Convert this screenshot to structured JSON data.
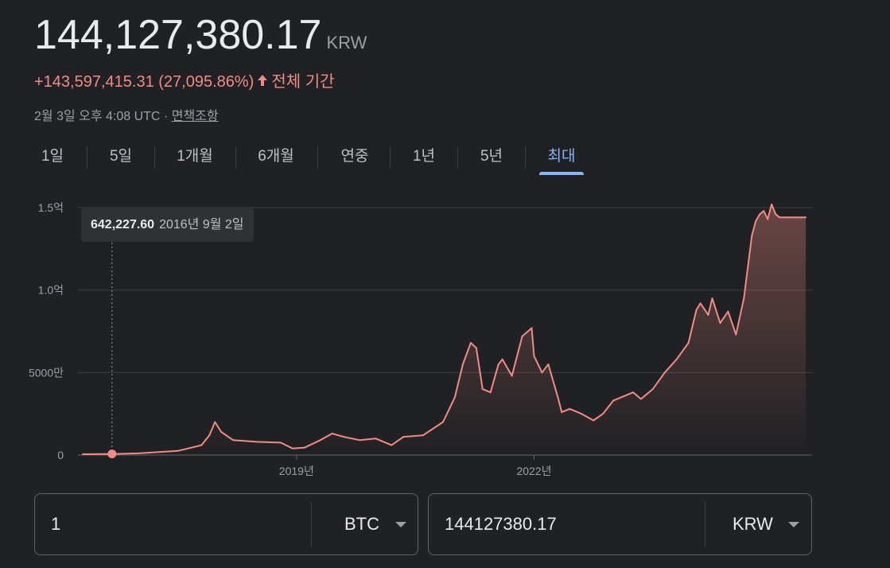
{
  "header": {
    "price": "144,127,380.17",
    "currency": "KRW",
    "change": "+143,597,415.31 (27,095.86%)",
    "change_period": "전체 기간",
    "timestamp": "2월 3일 오후 4:08 UTC ·",
    "disclaimer_link": "면책조항"
  },
  "colors": {
    "accent": "#8ab4f8",
    "line": "#f28b82",
    "positive_change": "#f28b82",
    "background": "#202124"
  },
  "tabs": [
    {
      "label": "1일",
      "active": false
    },
    {
      "label": "5일",
      "active": false
    },
    {
      "label": "1개월",
      "active": false
    },
    {
      "label": "6개월",
      "active": false
    },
    {
      "label": "연중",
      "active": false
    },
    {
      "label": "1년",
      "active": false
    },
    {
      "label": "5년",
      "active": false
    },
    {
      "label": "최대",
      "active": true
    }
  ],
  "tooltip": {
    "value": "642,227.60",
    "date": "2016년 9월 2일"
  },
  "converter": {
    "from_amount": "1",
    "from_unit": "BTC",
    "to_amount": "144127380.17",
    "to_unit": "KRW"
  },
  "chart_data": {
    "type": "area",
    "y_ticks": [
      {
        "value": 0,
        "label": "0"
      },
      {
        "value": 50000000,
        "label": "5000만"
      },
      {
        "value": 100000000,
        "label": "1.0억"
      },
      {
        "value": 150000000,
        "label": "1.5억"
      }
    ],
    "x_ticks": [
      {
        "value": 2019.0,
        "label": "2019년"
      },
      {
        "value": 2022.0,
        "label": "2022년"
      }
    ],
    "ylim": [
      0,
      150000000
    ],
    "xlim": [
      2016.3,
      2025.43
    ],
    "grid": true,
    "highlight": {
      "x": 2016.67,
      "y": 642227.6
    },
    "x": [
      2016.3,
      2016.67,
      2017.0,
      2017.5,
      2017.8,
      2017.9,
      2017.97,
      2018.05,
      2018.2,
      2018.5,
      2018.8,
      2018.95,
      2019.1,
      2019.3,
      2019.45,
      2019.6,
      2019.8,
      2020.0,
      2020.2,
      2020.35,
      2020.6,
      2020.85,
      2021.0,
      2021.1,
      2021.2,
      2021.27,
      2021.35,
      2021.45,
      2021.55,
      2021.6,
      2021.72,
      2021.85,
      2021.97,
      2022.0,
      2022.1,
      2022.18,
      2022.3,
      2022.35,
      2022.45,
      2022.6,
      2022.75,
      2022.87,
      2023.0,
      2023.1,
      2023.25,
      2023.35,
      2023.5,
      2023.65,
      2023.8,
      2023.95,
      2024.05,
      2024.1,
      2024.2,
      2024.25,
      2024.35,
      2024.45,
      2024.55,
      2024.65,
      2024.75,
      2024.8,
      2024.85,
      2024.9,
      2024.95,
      2025.0,
      2025.05,
      2025.1,
      2025.2,
      2025.3,
      2025.38,
      2025.43
    ],
    "values": [
      500000,
      642227.6,
      1000000,
      2500000,
      6000000,
      12000000,
      20000000,
      14000000,
      9000000,
      8000000,
      7500000,
      4000000,
      4500000,
      9000000,
      13000000,
      11000000,
      9000000,
      10000000,
      6000000,
      11000000,
      12000000,
      20000000,
      35000000,
      55000000,
      68000000,
      65000000,
      40000000,
      38000000,
      55000000,
      58000000,
      48000000,
      72000000,
      77000000,
      60000000,
      50000000,
      55000000,
      35000000,
      26000000,
      28000000,
      25000000,
      21000000,
      25000000,
      33000000,
      35000000,
      38000000,
      34000000,
      40000000,
      50000000,
      58000000,
      68000000,
      88000000,
      92000000,
      85000000,
      95000000,
      80000000,
      87000000,
      73000000,
      95000000,
      133000000,
      142000000,
      146000000,
      148000000,
      143000000,
      152000000,
      146000000,
      144127380.17,
      144127380.17,
      144127380.17,
      144127380.17,
      144127380.17
    ]
  }
}
